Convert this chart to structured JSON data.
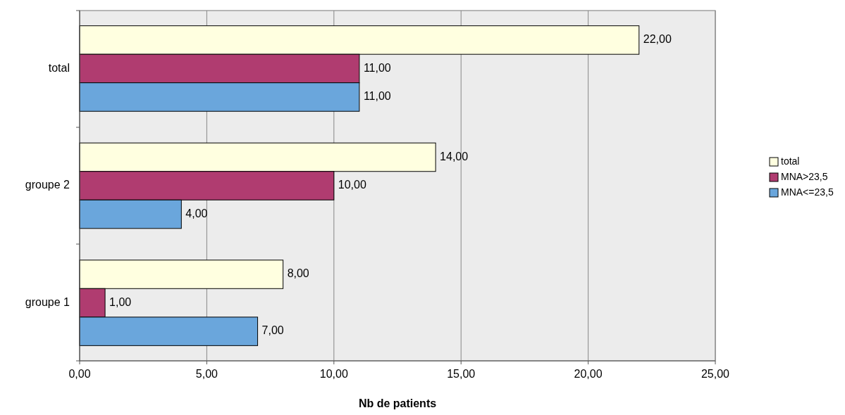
{
  "chart_data": {
    "type": "bar",
    "orientation": "horizontal",
    "xlabel": "Nb de patients",
    "categories": [
      "total",
      "groupe 2",
      "groupe 1"
    ],
    "series": [
      {
        "name": "total",
        "color": "#ffffe0",
        "values": [
          22,
          14,
          8
        ],
        "value_labels": [
          "22,00",
          "14,00",
          "8,00"
        ]
      },
      {
        "name": "MNA>23,5",
        "color": "#b03c70",
        "values": [
          11,
          10,
          1
        ],
        "value_labels": [
          "11,00",
          "10,00",
          "1,00"
        ]
      },
      {
        "name": "MNA<=23,5",
        "color": "#6aa6dc",
        "values": [
          11,
          4,
          7
        ],
        "value_labels": [
          "11,00",
          "4,00",
          "7,00"
        ]
      }
    ],
    "xlim": [
      0,
      25
    ],
    "xticks": [
      {
        "value": 0,
        "label": "0,00"
      },
      {
        "value": 5,
        "label": "5,00"
      },
      {
        "value": 10,
        "label": "10,00"
      },
      {
        "value": 15,
        "label": "15,00"
      },
      {
        "value": 20,
        "label": "20,00"
      },
      {
        "value": 25,
        "label": "25,00"
      }
    ],
    "grid": "x",
    "legend": "right"
  }
}
